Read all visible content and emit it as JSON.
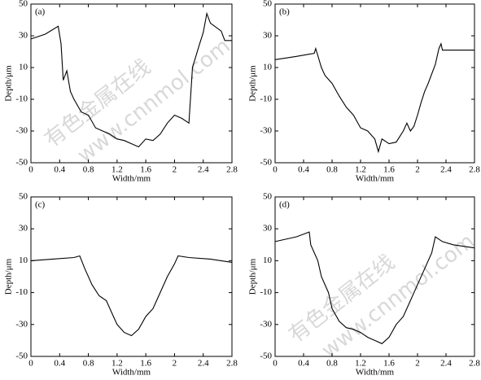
{
  "chart_data": [
    {
      "type": "line",
      "label": "(a)",
      "xlabel": "Width/mm",
      "ylabel": "Depth/μm",
      "color": "#000000",
      "x": [
        0,
        0.2,
        0.38,
        0.42,
        0.45,
        0.5,
        0.55,
        0.6,
        0.7,
        0.8,
        0.9,
        1.0,
        1.1,
        1.2,
        1.3,
        1.4,
        1.5,
        1.6,
        1.7,
        1.8,
        1.9,
        2.0,
        2.1,
        2.2,
        2.25,
        2.35,
        2.4,
        2.45,
        2.5,
        2.65,
        2.7,
        2.8
      ],
      "values": [
        28,
        31,
        36,
        25,
        2,
        8,
        -5,
        -10,
        -18,
        -20,
        -28,
        -30,
        -32,
        -35,
        -36,
        -38,
        -40,
        -35,
        -36,
        -32,
        -25,
        -20,
        -22,
        -25,
        10,
        25,
        32,
        44,
        38,
        33,
        27,
        27
      ],
      "xlim": [
        0,
        2.8
      ],
      "ylim": [
        -50,
        50
      ],
      "xticks": [
        0,
        0.4,
        0.8,
        1.2,
        1.6,
        2.0,
        2.4,
        2.8
      ],
      "yticks": [
        -50,
        -30,
        -10,
        10,
        30,
        50
      ]
    },
    {
      "type": "line",
      "label": "(b)",
      "xlabel": "Width/mm",
      "ylabel": "Depth/μm",
      "color": "#000000",
      "x": [
        0,
        0.3,
        0.55,
        0.57,
        0.65,
        0.7,
        0.8,
        0.9,
        1.0,
        1.1,
        1.2,
        1.3,
        1.4,
        1.45,
        1.5,
        1.6,
        1.7,
        1.8,
        1.85,
        1.9,
        1.95,
        2.0,
        2.05,
        2.1,
        2.15,
        2.25,
        2.3,
        2.33,
        2.35,
        2.8
      ],
      "values": [
        15,
        17,
        19,
        22,
        10,
        5,
        0,
        -8,
        -15,
        -20,
        -28,
        -30,
        -35,
        -43,
        -35,
        -38,
        -37,
        -30,
        -25,
        -30,
        -27,
        -20,
        -12,
        -5,
        0,
        12,
        22,
        25,
        21,
        21
      ],
      "xlim": [
        0,
        2.8
      ],
      "ylim": [
        -50,
        50
      ],
      "xticks": [
        0,
        0.4,
        0.8,
        1.2,
        1.6,
        2.0,
        2.4,
        2.8
      ],
      "yticks": [
        -50,
        -30,
        -10,
        10,
        30,
        50
      ]
    },
    {
      "type": "line",
      "label": "(c)",
      "xlabel": "Width/mm",
      "ylabel": "Depth/μm",
      "color": "#000000",
      "x": [
        0,
        0.3,
        0.6,
        0.68,
        0.75,
        0.85,
        0.95,
        1.05,
        1.15,
        1.2,
        1.3,
        1.4,
        1.5,
        1.6,
        1.7,
        1.8,
        1.9,
        2.0,
        2.05,
        2.2,
        2.5,
        2.8
      ],
      "values": [
        10,
        11,
        12,
        13,
        5,
        -5,
        -12,
        -15,
        -25,
        -30,
        -35,
        -37,
        -33,
        -25,
        -20,
        -10,
        0,
        8,
        13,
        12,
        11,
        9
      ],
      "xlim": [
        0,
        2.8
      ],
      "ylim": [
        -50,
        50
      ],
      "xticks": [
        0,
        0.4,
        0.8,
        1.2,
        1.6,
        2.0,
        2.4,
        2.8
      ],
      "yticks": [
        -50,
        -30,
        -10,
        10,
        30,
        50
      ]
    },
    {
      "type": "line",
      "label": "(d)",
      "xlabel": "Width/mm",
      "ylabel": "Depth/μm",
      "color": "#000000",
      "x": [
        0,
        0.3,
        0.48,
        0.5,
        0.6,
        0.65,
        0.75,
        0.8,
        0.9,
        1.0,
        1.1,
        1.2,
        1.3,
        1.4,
        1.5,
        1.6,
        1.7,
        1.8,
        1.9,
        2.0,
        2.1,
        2.2,
        2.25,
        2.35,
        2.5,
        2.8
      ],
      "values": [
        22,
        25,
        28,
        20,
        10,
        0,
        -10,
        -20,
        -28,
        -32,
        -33,
        -35,
        -38,
        -40,
        -42,
        -38,
        -30,
        -25,
        -15,
        -5,
        5,
        15,
        25,
        22,
        20,
        18
      ],
      "xlim": [
        0,
        2.8
      ],
      "ylim": [
        -50,
        50
      ],
      "xticks": [
        0,
        0.4,
        0.8,
        1.2,
        1.6,
        2.0,
        2.4,
        2.8
      ],
      "yticks": [
        -50,
        -30,
        -10,
        10,
        30,
        50
      ]
    }
  ],
  "watermark": {
    "name": "有色金属在线",
    "url": "www.cnnmol.com"
  }
}
